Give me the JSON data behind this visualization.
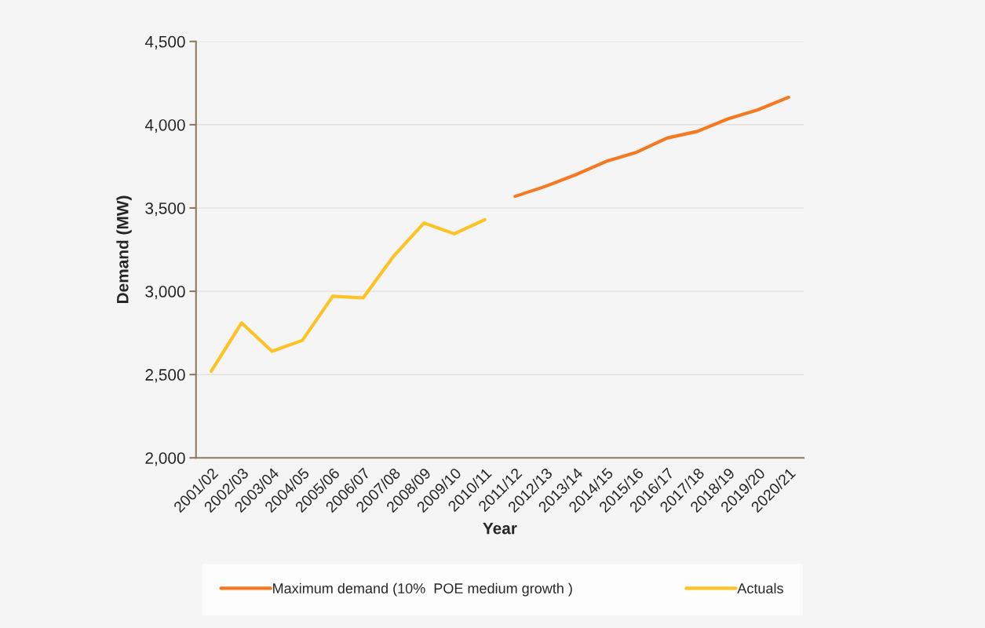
{
  "chart_data": {
    "type": "line",
    "xlabel": "Year",
    "ylabel": "Demand (MW)",
    "categories": [
      "2001/02",
      "2002/03",
      "2003/04",
      "2004/05",
      "2005/06",
      "2006/07",
      "2007/08",
      "2008/09",
      "2009/10",
      "2010/11",
      "2011/12",
      "2012/13",
      "2013/14",
      "2014/15",
      "2015/16",
      "2016/17",
      "2017/18",
      "2018/19",
      "2019/20",
      "2020/21"
    ],
    "series": [
      {
        "name": "Maximum demand (10%  POE medium growth )",
        "color": "#f47920",
        "values": [
          null,
          null,
          null,
          null,
          null,
          null,
          null,
          null,
          null,
          null,
          3570,
          3630,
          3700,
          3780,
          3835,
          3920,
          3960,
          4035,
          4090,
          4165
        ]
      },
      {
        "name": "Actuals",
        "color": "#fdc223",
        "values": [
          2520,
          2810,
          2640,
          2705,
          2970,
          2960,
          3210,
          3410,
          3345,
          3430,
          null,
          null,
          null,
          null,
          null,
          null,
          null,
          null,
          null,
          null
        ]
      }
    ],
    "ylim": [
      2000,
      4500
    ],
    "yticks": [
      {
        "value": 2000,
        "label": "2,000"
      },
      {
        "value": 2500,
        "label": "2,500"
      },
      {
        "value": 3000,
        "label": "3,000"
      },
      {
        "value": 3500,
        "label": "3,500"
      },
      {
        "value": 4000,
        "label": "4,000"
      },
      {
        "value": 4500,
        "label": "4,500"
      }
    ],
    "grid": "y",
    "legend": "bottom",
    "marker": "none",
    "line_style": "solid"
  }
}
